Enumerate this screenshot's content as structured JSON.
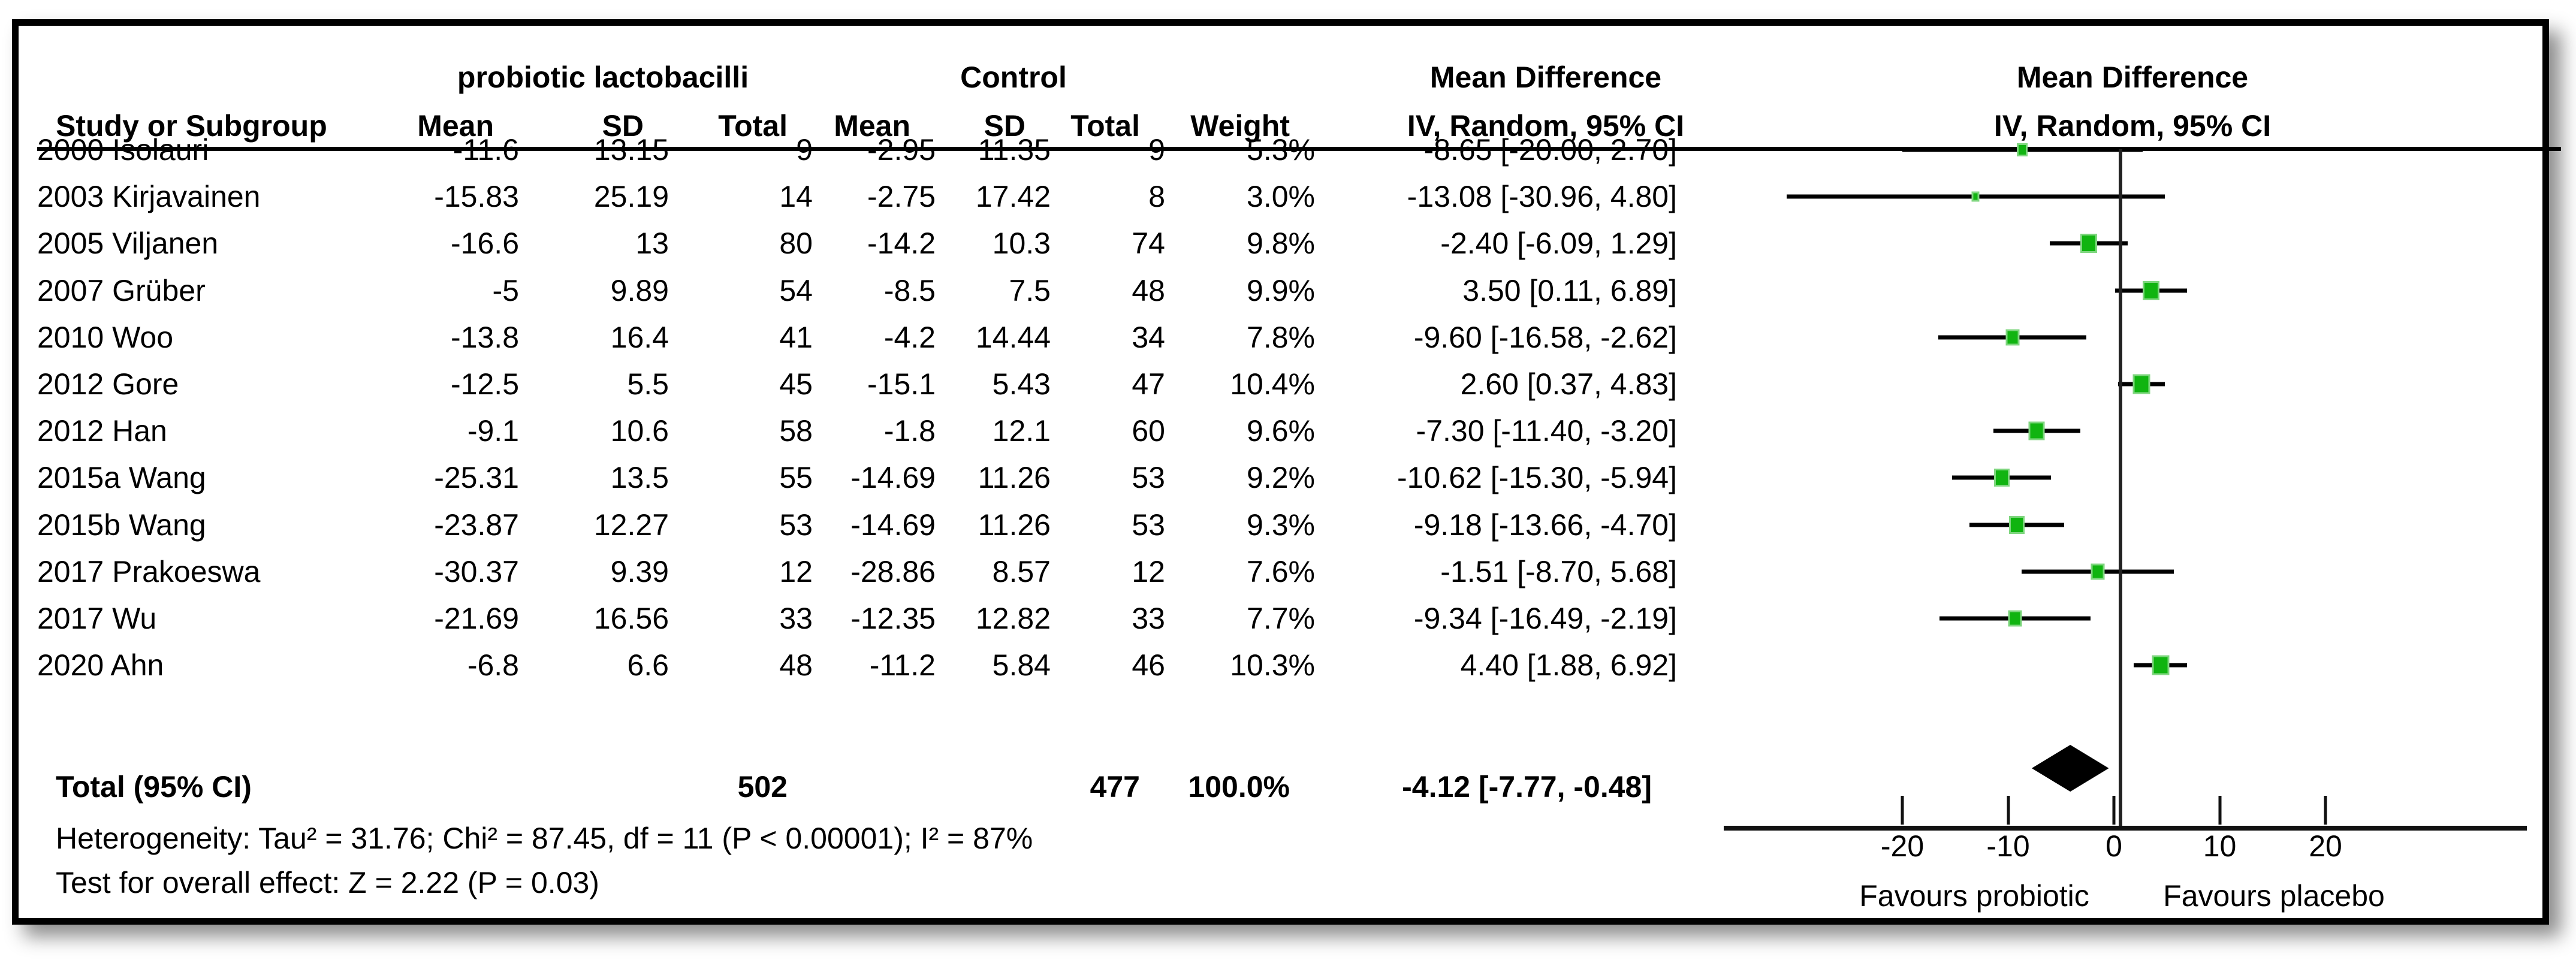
{
  "header": {
    "study_col": "Study or Subgroup",
    "group_treatment": "probiotic lactobacilli",
    "group_control": "Control",
    "md_text_line1": "Mean Difference",
    "md_text_line2": "IV, Random, 95% CI",
    "md_plot_line1": "Mean Difference",
    "md_plot_line2": "IV, Random, 95% CI",
    "treat_mean": "Mean",
    "treat_sd": "SD",
    "treat_total": "Total",
    "ctrl_mean": "Mean",
    "ctrl_sd": "SD",
    "ctrl_total": "Total",
    "weight": "Weight"
  },
  "rows": [
    {
      "study": "2000 Isolauri",
      "t_mean": "-11.6",
      "t_sd": "13.15",
      "t_total": "9",
      "c_mean": "-2.95",
      "c_sd": "11.35",
      "c_total": "9",
      "weight": "5.3%",
      "ci_text": "-8.65 [-20.00, 2.70]",
      "md": -8.65,
      "lo": -20.0,
      "hi": 2.7,
      "weight_num": 5.3
    },
    {
      "study": "2003 Kirjavainen",
      "t_mean": "-15.83",
      "t_sd": "25.19",
      "t_total": "14",
      "c_mean": "-2.75",
      "c_sd": "17.42",
      "c_total": "8",
      "weight": "3.0%",
      "ci_text": "-13.08 [-30.96, 4.80]",
      "md": -13.08,
      "lo": -30.96,
      "hi": 4.8,
      "weight_num": 3.0
    },
    {
      "study": "2005 Viljanen",
      "t_mean": "-16.6",
      "t_sd": "13",
      "t_total": "80",
      "c_mean": "-14.2",
      "c_sd": "10.3",
      "c_total": "74",
      "weight": "9.8%",
      "ci_text": "-2.40 [-6.09, 1.29]",
      "md": -2.4,
      "lo": -6.09,
      "hi": 1.29,
      "weight_num": 9.8
    },
    {
      "study": "2007 Grüber",
      "t_mean": "-5",
      "t_sd": "9.89",
      "t_total": "54",
      "c_mean": "-8.5",
      "c_sd": "7.5",
      "c_total": "48",
      "weight": "9.9%",
      "ci_text": "3.50 [0.11, 6.89]",
      "md": 3.5,
      "lo": 0.11,
      "hi": 6.89,
      "weight_num": 9.9
    },
    {
      "study": "2010 Woo",
      "t_mean": "-13.8",
      "t_sd": "16.4",
      "t_total": "41",
      "c_mean": "-4.2",
      "c_sd": "14.44",
      "c_total": "34",
      "weight": "7.8%",
      "ci_text": "-9.60 [-16.58, -2.62]",
      "md": -9.6,
      "lo": -16.58,
      "hi": -2.62,
      "weight_num": 7.8
    },
    {
      "study": "2012 Gore",
      "t_mean": "-12.5",
      "t_sd": "5.5",
      "t_total": "45",
      "c_mean": "-15.1",
      "c_sd": "5.43",
      "c_total": "47",
      "weight": "10.4%",
      "ci_text": "2.60 [0.37, 4.83]",
      "md": 2.6,
      "lo": 0.37,
      "hi": 4.83,
      "weight_num": 10.4
    },
    {
      "study": "2012 Han",
      "t_mean": "-9.1",
      "t_sd": "10.6",
      "t_total": "58",
      "c_mean": "-1.8",
      "c_sd": "12.1",
      "c_total": "60",
      "weight": "9.6%",
      "ci_text": "-7.30 [-11.40, -3.20]",
      "md": -7.3,
      "lo": -11.4,
      "hi": -3.2,
      "weight_num": 9.6
    },
    {
      "study": "2015a Wang",
      "t_mean": "-25.31",
      "t_sd": "13.5",
      "t_total": "55",
      "c_mean": "-14.69",
      "c_sd": "11.26",
      "c_total": "53",
      "weight": "9.2%",
      "ci_text": "-10.62 [-15.30, -5.94]",
      "md": -10.62,
      "lo": -15.3,
      "hi": -5.94,
      "weight_num": 9.2
    },
    {
      "study": "2015b Wang",
      "t_mean": "-23.87",
      "t_sd": "12.27",
      "t_total": "53",
      "c_mean": "-14.69",
      "c_sd": "11.26",
      "c_total": "53",
      "weight": "9.3%",
      "ci_text": "-9.18 [-13.66, -4.70]",
      "md": -9.18,
      "lo": -13.66,
      "hi": -4.7,
      "weight_num": 9.3
    },
    {
      "study": "2017 Prakoeswa",
      "t_mean": "-30.37",
      "t_sd": "9.39",
      "t_total": "12",
      "c_mean": "-28.86",
      "c_sd": "8.57",
      "c_total": "12",
      "weight": "7.6%",
      "ci_text": "-1.51 [-8.70, 5.68]",
      "md": -1.51,
      "lo": -8.7,
      "hi": 5.68,
      "weight_num": 7.6
    },
    {
      "study": "2017 Wu",
      "t_mean": "-21.69",
      "t_sd": "16.56",
      "t_total": "33",
      "c_mean": "-12.35",
      "c_sd": "12.82",
      "c_total": "33",
      "weight": "7.7%",
      "ci_text": "-9.34 [-16.49, -2.19]",
      "md": -9.34,
      "lo": -16.49,
      "hi": -2.19,
      "weight_num": 7.7
    },
    {
      "study": "2020 Ahn",
      "t_mean": "-6.8",
      "t_sd": "6.6",
      "t_total": "48",
      "c_mean": "-11.2",
      "c_sd": "5.84",
      "c_total": "46",
      "weight": "10.3%",
      "ci_text": "4.40 [1.88, 6.92]",
      "md": 4.4,
      "lo": 1.88,
      "hi": 6.92,
      "weight_num": 10.3
    }
  ],
  "totals": {
    "label": "Total (95% CI)",
    "t_total": "502",
    "c_total": "477",
    "weight": "100.0%",
    "ci_text": "-4.12 [-7.77, -0.48]",
    "md": -4.12,
    "lo": -7.77,
    "hi": -0.48
  },
  "footer": {
    "heterogeneity": "Heterogeneity: Tau² = 31.76; Chi² = 87.45, df = 11 (P < 0.00001); I² = 87%",
    "overall_effect": "Test for overall effect: Z = 2.22 (P = 0.03)"
  },
  "axis": {
    "ticks": [
      "-20",
      "-10",
      "0",
      "10",
      "20"
    ],
    "tick_values": [
      -20,
      -10,
      0,
      10,
      20
    ],
    "favours_left": "Favours probiotic",
    "favours_right": "Favours placebo"
  },
  "colors": {
    "marker_fill": "#10b410",
    "marker_border": "#7fd67f",
    "line": "#000000",
    "diamond": "#000000"
  },
  "chart_data": {
    "type": "scatter",
    "subtype": "forest-plot",
    "title": "Mean Difference, IV, Random, 95% CI — probiotic lactobacilli vs Control",
    "effect_measure": "Mean Difference",
    "method": "IV, Random, 95% CI",
    "studies": [
      {
        "name": "2000 Isolauri",
        "treat": {
          "mean": -11.6,
          "sd": 13.15,
          "total": 9
        },
        "control": {
          "mean": -2.95,
          "sd": 11.35,
          "total": 9
        },
        "weight_pct": 5.3,
        "md": -8.65,
        "ci": [
          -20.0,
          2.7
        ]
      },
      {
        "name": "2003 Kirjavainen",
        "treat": {
          "mean": -15.83,
          "sd": 25.19,
          "total": 14
        },
        "control": {
          "mean": -2.75,
          "sd": 17.42,
          "total": 8
        },
        "weight_pct": 3.0,
        "md": -13.08,
        "ci": [
          -30.96,
          4.8
        ]
      },
      {
        "name": "2005 Viljanen",
        "treat": {
          "mean": -16.6,
          "sd": 13,
          "total": 80
        },
        "control": {
          "mean": -14.2,
          "sd": 10.3,
          "total": 74
        },
        "weight_pct": 9.8,
        "md": -2.4,
        "ci": [
          -6.09,
          1.29
        ]
      },
      {
        "name": "2007 Grüber",
        "treat": {
          "mean": -5,
          "sd": 9.89,
          "total": 54
        },
        "control": {
          "mean": -8.5,
          "sd": 7.5,
          "total": 48
        },
        "weight_pct": 9.9,
        "md": 3.5,
        "ci": [
          0.11,
          6.89
        ]
      },
      {
        "name": "2010 Woo",
        "treat": {
          "mean": -13.8,
          "sd": 16.4,
          "total": 41
        },
        "control": {
          "mean": -4.2,
          "sd": 14.44,
          "total": 34
        },
        "weight_pct": 7.8,
        "md": -9.6,
        "ci": [
          -16.58,
          -2.62
        ]
      },
      {
        "name": "2012 Gore",
        "treat": {
          "mean": -12.5,
          "sd": 5.5,
          "total": 45
        },
        "control": {
          "mean": -15.1,
          "sd": 5.43,
          "total": 47
        },
        "weight_pct": 10.4,
        "md": 2.6,
        "ci": [
          0.37,
          4.83
        ]
      },
      {
        "name": "2012 Han",
        "treat": {
          "mean": -9.1,
          "sd": 10.6,
          "total": 58
        },
        "control": {
          "mean": -1.8,
          "sd": 12.1,
          "total": 60
        },
        "weight_pct": 9.6,
        "md": -7.3,
        "ci": [
          -11.4,
          -3.2
        ]
      },
      {
        "name": "2015a Wang",
        "treat": {
          "mean": -25.31,
          "sd": 13.5,
          "total": 55
        },
        "control": {
          "mean": -14.69,
          "sd": 11.26,
          "total": 53
        },
        "weight_pct": 9.2,
        "md": -10.62,
        "ci": [
          -15.3,
          -5.94
        ]
      },
      {
        "name": "2015b Wang",
        "treat": {
          "mean": -23.87,
          "sd": 12.27,
          "total": 53
        },
        "control": {
          "mean": -14.69,
          "sd": 11.26,
          "total": 53
        },
        "weight_pct": 9.3,
        "md": -9.18,
        "ci": [
          -13.66,
          -4.7
        ]
      },
      {
        "name": "2017 Prakoeswa",
        "treat": {
          "mean": -30.37,
          "sd": 9.39,
          "total": 12
        },
        "control": {
          "mean": -28.86,
          "sd": 8.57,
          "total": 12
        },
        "weight_pct": 7.6,
        "md": -1.51,
        "ci": [
          -8.7,
          5.68
        ]
      },
      {
        "name": "2017 Wu",
        "treat": {
          "mean": -21.69,
          "sd": 16.56,
          "total": 33
        },
        "control": {
          "mean": -12.35,
          "sd": 12.82,
          "total": 33
        },
        "weight_pct": 7.7,
        "md": -9.34,
        "ci": [
          -16.49,
          -2.19
        ]
      },
      {
        "name": "2020 Ahn",
        "treat": {
          "mean": -6.8,
          "sd": 6.6,
          "total": 48
        },
        "control": {
          "mean": -11.2,
          "sd": 5.84,
          "total": 46
        },
        "weight_pct": 10.3,
        "md": 4.4,
        "ci": [
          1.88,
          6.92
        ]
      }
    ],
    "total": {
      "label": "Total (95% CI)",
      "treat_total": 502,
      "control_total": 477,
      "weight_pct": 100.0,
      "md": -4.12,
      "ci": [
        -7.77,
        -0.48
      ]
    },
    "heterogeneity": {
      "tau2": 31.76,
      "chi2": 87.45,
      "df": 11,
      "p": "< 0.00001",
      "i2": "87%"
    },
    "overall_effect": {
      "z": 2.22,
      "p": "= 0.03"
    },
    "xaxis": {
      "ticks": [
        -20,
        -10,
        0,
        10,
        20
      ],
      "range": [
        -37.5,
        38.5
      ],
      "zero_line": true,
      "label_left": "Favours probiotic",
      "label_right": "Favours placebo"
    },
    "legend_position": "none",
    "grid": false
  }
}
